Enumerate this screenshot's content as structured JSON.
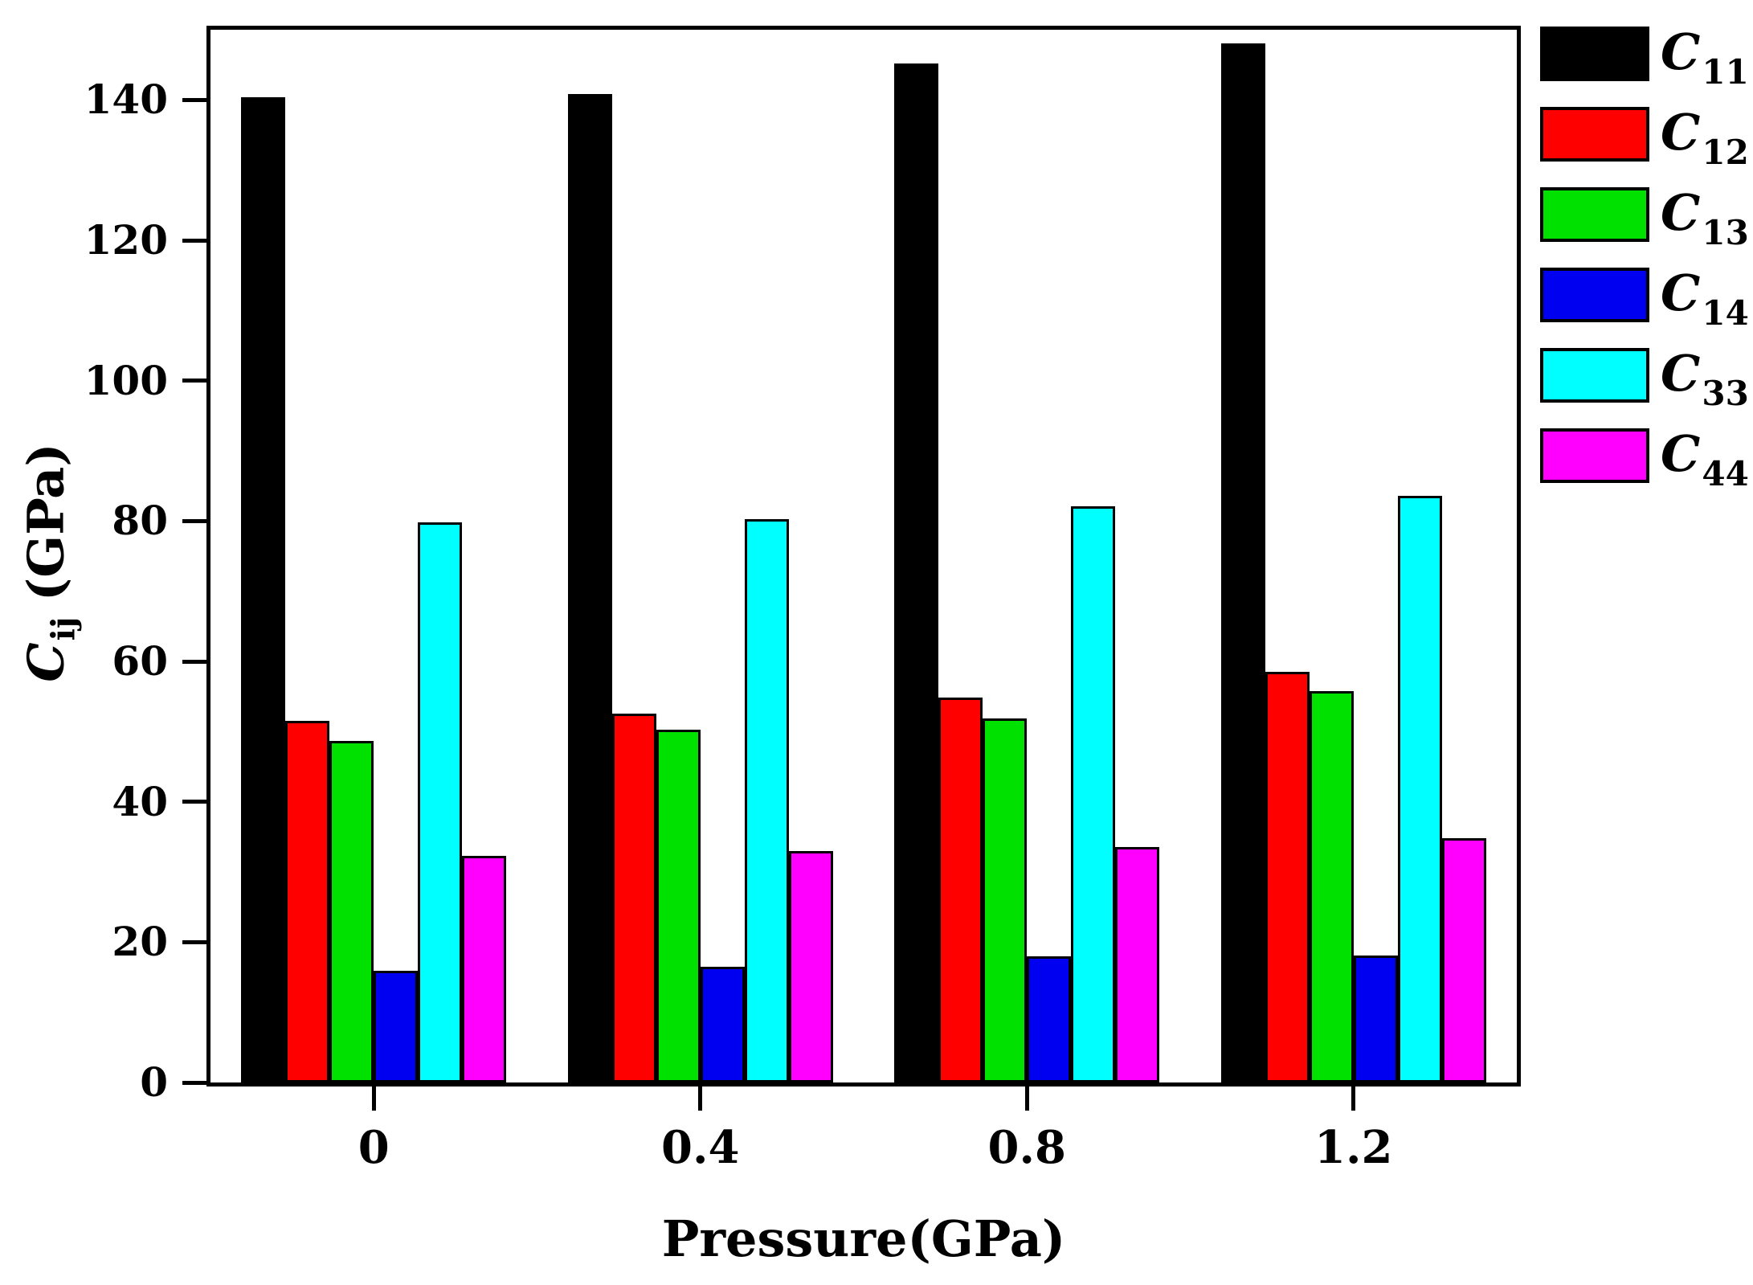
{
  "chart_data": {
    "type": "bar",
    "title": "",
    "xlabel": "Pressure(GPa)",
    "ylabel_main": "C",
    "ylabel_sub": "ij",
    "ylabel_rest": " (GPa)",
    "categories": [
      "0",
      "0.4",
      "0.8",
      "1.2"
    ],
    "series": [
      {
        "name": "C11",
        "label_main": "C",
        "label_sub": "11",
        "color": "#000000",
        "values": [
          140.4,
          140.8,
          145.2,
          148.0
        ]
      },
      {
        "name": "C12",
        "label_main": "C",
        "label_sub": "12",
        "color": "#FF0000",
        "values": [
          51.5,
          52.6,
          54.9,
          58.5
        ]
      },
      {
        "name": "C13",
        "label_main": "C",
        "label_sub": "13",
        "color": "#00E100",
        "values": [
          48.7,
          50.3,
          51.9,
          55.8
        ]
      },
      {
        "name": "C14",
        "label_main": "C",
        "label_sub": "14",
        "color": "#0000F0",
        "values": [
          15.9,
          16.5,
          18.0,
          18.1
        ]
      },
      {
        "name": "C33",
        "label_main": "C",
        "label_sub": "33",
        "color": "#00FFFF",
        "values": [
          79.8,
          80.3,
          82.1,
          83.6
        ]
      },
      {
        "name": "C44",
        "label_main": "C",
        "label_sub": "44",
        "color": "#FF00FF",
        "values": [
          32.3,
          33.0,
          33.5,
          34.8
        ]
      }
    ],
    "ylim": [
      0,
      150
    ],
    "yticks": [
      0,
      20,
      40,
      60,
      80,
      100,
      120,
      140
    ],
    "grid": false,
    "legend_position": "outside-right",
    "axis_color": "#000000"
  }
}
